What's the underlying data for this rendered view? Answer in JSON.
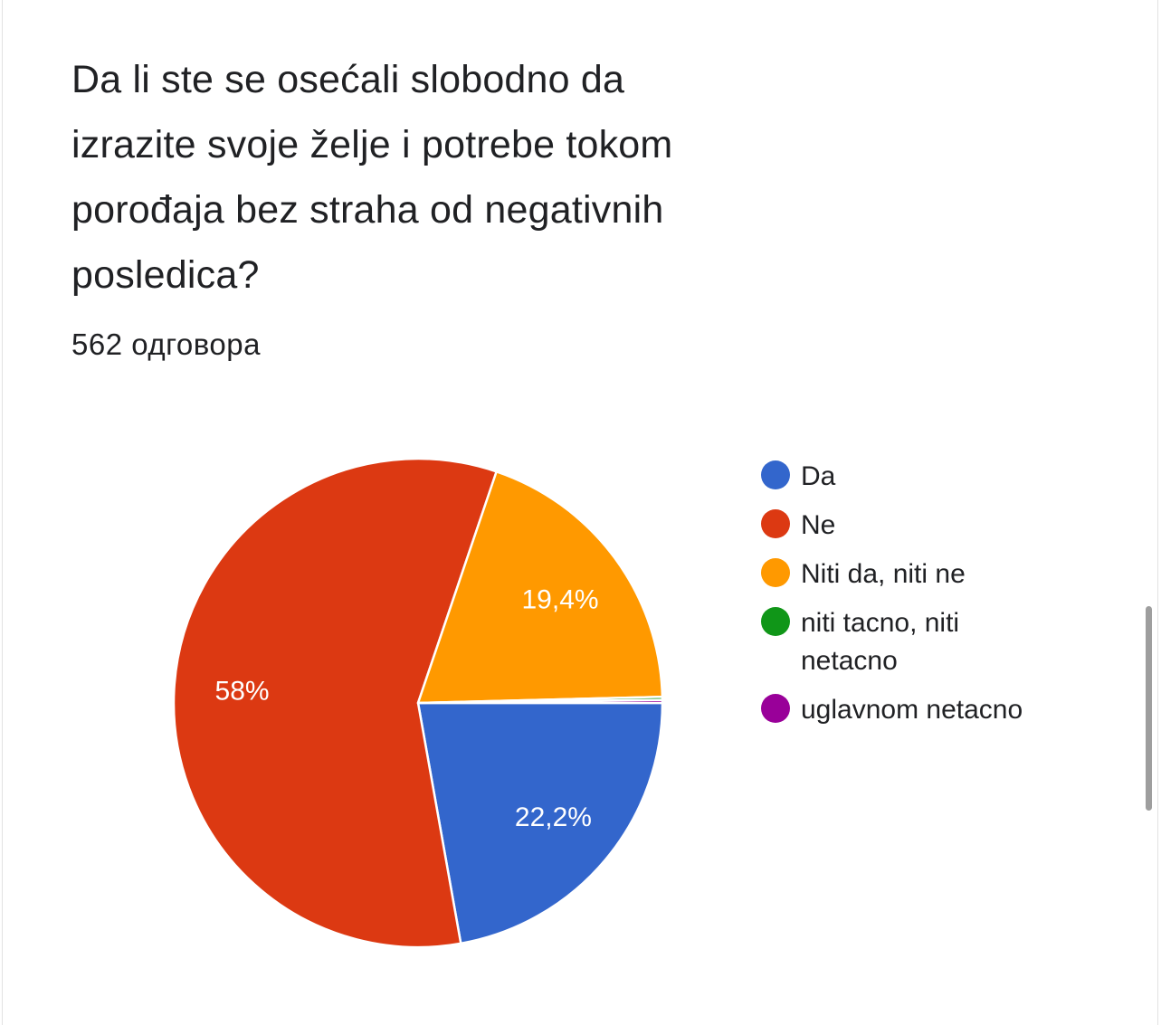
{
  "question": {
    "title_line1": "Da li ste se osećali slobodno da",
    "title_line2": "izrazite svoje želje i potrebe tokom",
    "title_line3": "porođaja bez straha od negativnih",
    "title_line4": "posledica?",
    "responses": "562 одговора"
  },
  "chart_data": {
    "type": "pie",
    "categories": [
      "Da",
      "Ne",
      "Niti da, niti ne",
      "niti tacno, niti netacno",
      "uglavnom netacno"
    ],
    "values": [
      22.2,
      58,
      19.4,
      0.2,
      0.2
    ],
    "labels": [
      "22,2%",
      "58%",
      "19,4%",
      "",
      ""
    ],
    "colors": [
      "#3366cc",
      "#dc3912",
      "#ff9900",
      "#109618",
      "#990099"
    ],
    "legend": {
      "items": [
        {
          "lines": [
            "Da"
          ]
        },
        {
          "lines": [
            "Ne"
          ]
        },
        {
          "lines": [
            "Niti da, niti ne"
          ]
        },
        {
          "lines": [
            "niti tacno, niti",
            "netacno"
          ]
        },
        {
          "lines": [
            "uglavnom netacno"
          ]
        }
      ],
      "placement": "right"
    }
  }
}
